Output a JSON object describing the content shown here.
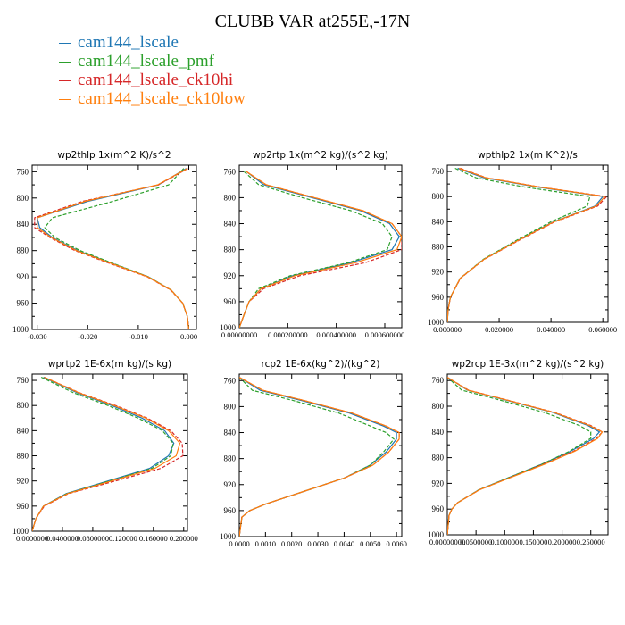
{
  "title": "CLUBB VAR at255E,-17N",
  "legend": [
    {
      "label": "cam144_lscale",
      "color": "#1f77b4"
    },
    {
      "label": "cam144_lscale_pmf",
      "color": "#2ca02c"
    },
    {
      "label": "cam144_lscale_ck10hi",
      "color": "#d62728"
    },
    {
      "label": "cam144_lscale_ck10low",
      "color": "#ff7f0e"
    }
  ],
  "chart_data": [
    {
      "type": "line",
      "title": "wp2thlp  1x(m^2 K)/s^2",
      "xlim": [
        -0.031,
        0.0015
      ],
      "ylim": [
        1000,
        750
      ],
      "xticks": [
        -0.03,
        -0.02,
        -0.01,
        0.0
      ],
      "xtick_labels": [
        "-0.030",
        "-0.020",
        "-0.010",
        "0.000"
      ],
      "yticks": [
        760,
        800,
        840,
        880,
        920,
        960,
        1000
      ],
      "ytick_labels": [
        "760",
        "800",
        "840",
        "880",
        "920",
        "960",
        "1000"
      ],
      "y": [
        755,
        780,
        805,
        830,
        845,
        860,
        880,
        900,
        920,
        940,
        960,
        980,
        1000
      ],
      "series": [
        {
          "name": "cam144_lscale",
          "color": "#1f77b4",
          "dash": "solid",
          "values": [
            -0.0005,
            -0.006,
            -0.02,
            -0.03,
            -0.0295,
            -0.027,
            -0.022,
            -0.015,
            -0.008,
            -0.0035,
            -0.0012,
            -0.0003,
            0.0
          ]
        },
        {
          "name": "cam144_lscale_pmf",
          "color": "#2ca02c",
          "dash": "dash",
          "values": [
            -0.001,
            -0.004,
            -0.015,
            -0.027,
            -0.0285,
            -0.0265,
            -0.0215,
            -0.0148,
            -0.008,
            -0.0035,
            -0.0012,
            -0.0003,
            0.0
          ]
        },
        {
          "name": "cam144_lscale_ck10hi",
          "color": "#d62728",
          "dash": "dash",
          "values": [
            -0.0002,
            -0.006,
            -0.021,
            -0.0305,
            -0.0305,
            -0.0275,
            -0.0225,
            -0.0155,
            -0.0082,
            -0.0036,
            -0.0012,
            -0.0003,
            0.0
          ]
        },
        {
          "name": "cam144_lscale_ck10low",
          "color": "#ff7f0e",
          "dash": "solid",
          "values": [
            -0.0003,
            -0.0062,
            -0.0205,
            -0.03,
            -0.03,
            -0.0272,
            -0.0222,
            -0.0152,
            -0.0081,
            -0.0035,
            -0.0012,
            -0.0003,
            0.0
          ]
        }
      ]
    },
    {
      "type": "line",
      "title": "wp2rtp  1x(m^2 kg)/(s^2 kg)",
      "xlim": [
        0.0,
        0.00067
      ],
      "ylim": [
        1000,
        750
      ],
      "xticks": [
        0.0,
        0.0002,
        0.0004,
        0.0006
      ],
      "xtick_labels": [
        "0.00000000",
        "0.000200000",
        "0.000400000",
        "0.000600000"
      ],
      "yticks": [
        760,
        800,
        840,
        880,
        920,
        960,
        1000
      ],
      "ytick_labels": [
        "760",
        "800",
        "840",
        "880",
        "920",
        "960",
        "1000"
      ],
      "y": [
        760,
        780,
        800,
        820,
        840,
        860,
        880,
        900,
        920,
        940,
        960,
        980,
        1000
      ],
      "series": [
        {
          "name": "cam144_lscale",
          "color": "#1f77b4",
          "dash": "solid",
          "values": [
            3e-05,
            0.0001,
            0.0003,
            0.0005,
            0.00062,
            0.00066,
            0.00063,
            0.00046,
            0.00022,
            9e-05,
            4e-05,
            2e-05,
            0.0
          ]
        },
        {
          "name": "cam144_lscale_pmf",
          "color": "#2ca02c",
          "dash": "dash",
          "values": [
            2e-05,
            8e-05,
            0.00026,
            0.00046,
            0.00059,
            0.00063,
            0.00061,
            0.00045,
            0.00021,
            8e-05,
            4e-05,
            2e-05,
            0.0
          ]
        },
        {
          "name": "cam144_lscale_ck10hi",
          "color": "#d62728",
          "dash": "dash",
          "values": [
            3e-05,
            0.00011,
            0.00031,
            0.00051,
            0.00063,
            0.00067,
            0.00067,
            0.00052,
            0.00025,
            0.0001,
            4e-05,
            2e-05,
            0.0
          ]
        },
        {
          "name": "cam144_lscale_ck10low",
          "color": "#ff7f0e",
          "dash": "solid",
          "values": [
            3e-05,
            0.00011,
            0.00031,
            0.00051,
            0.00063,
            0.00067,
            0.00065,
            0.00048,
            0.00023,
            9e-05,
            4e-05,
            2e-05,
            0.0
          ]
        }
      ]
    },
    {
      "type": "line",
      "title": "wpthlp2  1x(m K^2)/s",
      "xlim": [
        0.0,
        0.062
      ],
      "ylim": [
        1000,
        750
      ],
      "xticks": [
        0.0,
        0.02,
        0.04,
        0.06
      ],
      "xtick_labels": [
        "0.000000",
        "0.020000",
        "0.040000",
        "0.060000"
      ],
      "yticks": [
        760,
        800,
        840,
        880,
        920,
        960,
        1000
      ],
      "ytick_labels": [
        "760",
        "800",
        "840",
        "880",
        "920",
        "960",
        "1000"
      ],
      "y": [
        755,
        770,
        785,
        800,
        815,
        840,
        870,
        900,
        930,
        960,
        980,
        1000
      ],
      "series": [
        {
          "name": "cam144_lscale",
          "color": "#1f77b4",
          "dash": "solid",
          "values": [
            0.004,
            0.014,
            0.035,
            0.06,
            0.057,
            0.041,
            0.027,
            0.014,
            0.005,
            0.0012,
            0.0003,
            0.0
          ]
        },
        {
          "name": "cam144_lscale_pmf",
          "color": "#2ca02c",
          "dash": "dash",
          "values": [
            0.003,
            0.011,
            0.03,
            0.055,
            0.054,
            0.04,
            0.0265,
            0.0138,
            0.005,
            0.0012,
            0.0003,
            0.0
          ]
        },
        {
          "name": "cam144_lscale_ck10hi",
          "color": "#d62728",
          "dash": "dash",
          "values": [
            0.005,
            0.015,
            0.036,
            0.0615,
            0.058,
            0.0415,
            0.0275,
            0.0142,
            0.0051,
            0.0012,
            0.0003,
            0.0
          ]
        },
        {
          "name": "cam144_lscale_ck10low",
          "color": "#ff7f0e",
          "dash": "solid",
          "values": [
            0.0045,
            0.0148,
            0.0358,
            0.0608,
            0.0575,
            0.0412,
            0.0272,
            0.0141,
            0.005,
            0.0012,
            0.0003,
            0.0
          ]
        }
      ]
    },
    {
      "type": "line",
      "title": "wprtp2  1E-6x(m kg)/(s kg)",
      "xlim": [
        0.0,
        0.205
      ],
      "ylim": [
        1000,
        750
      ],
      "xticks": [
        0.0,
        0.04,
        0.08,
        0.12,
        0.16,
        0.2
      ],
      "xtick_labels": [
        "0.0000000",
        "0.0400000",
        "0.0800000",
        "0.120000",
        "0.160000",
        "0.200000"
      ],
      "yticks": [
        760,
        800,
        840,
        880,
        920,
        960,
        1000
      ],
      "ytick_labels": [
        "760",
        "800",
        "840",
        "880",
        "920",
        "960",
        "1000"
      ],
      "y": [
        755,
        780,
        800,
        820,
        840,
        860,
        880,
        900,
        920,
        940,
        960,
        980,
        1000
      ],
      "series": [
        {
          "name": "cam144_lscale",
          "color": "#1f77b4",
          "dash": "solid",
          "values": [
            0.015,
            0.06,
            0.105,
            0.145,
            0.175,
            0.187,
            0.18,
            0.155,
            0.1,
            0.045,
            0.015,
            0.005,
            0.0
          ]
        },
        {
          "name": "cam144_lscale_pmf",
          "color": "#2ca02c",
          "dash": "dash",
          "values": [
            0.012,
            0.055,
            0.1,
            0.14,
            0.172,
            0.186,
            0.183,
            0.158,
            0.102,
            0.046,
            0.015,
            0.005,
            0.0
          ]
        },
        {
          "name": "cam144_lscale_ck10hi",
          "color": "#d62728",
          "dash": "dash",
          "values": [
            0.016,
            0.063,
            0.11,
            0.152,
            0.183,
            0.198,
            0.199,
            0.17,
            0.11,
            0.048,
            0.016,
            0.005,
            0.0
          ]
        },
        {
          "name": "cam144_lscale_ck10low",
          "color": "#ff7f0e",
          "dash": "solid",
          "values": [
            0.016,
            0.062,
            0.108,
            0.15,
            0.18,
            0.195,
            0.19,
            0.162,
            0.105,
            0.047,
            0.015,
            0.005,
            0.0
          ]
        }
      ]
    },
    {
      "type": "line",
      "title": "rcp2  1E-6x(kg^2)/(kg^2)",
      "xlim": [
        0.0,
        0.0062
      ],
      "ylim": [
        1000,
        750
      ],
      "xticks": [
        0.0,
        0.001,
        0.002,
        0.003,
        0.004,
        0.005,
        0.006
      ],
      "xtick_labels": [
        "0.0000",
        "0.0010",
        "0.0020",
        "0.0030",
        "0.0040",
        "0.0050",
        "0.0060"
      ],
      "yticks": [
        760,
        800,
        840,
        880,
        920,
        960,
        1000
      ],
      "ytick_labels": [
        "760",
        "800",
        "840",
        "880",
        "920",
        "960",
        "1000"
      ],
      "y": [
        755,
        775,
        790,
        810,
        830,
        840,
        850,
        870,
        890,
        910,
        930,
        950,
        960,
        970,
        1000
      ],
      "series": [
        {
          "name": "cam144_lscale",
          "color": "#1f77b4",
          "dash": "solid",
          "values": [
            0.0,
            0.0008,
            0.0023,
            0.0042,
            0.0055,
            0.006,
            0.006,
            0.0056,
            0.005,
            0.004,
            0.0025,
            0.001,
            0.0004,
            0.0001,
            0.0
          ]
        },
        {
          "name": "cam144_lscale_pmf",
          "color": "#2ca02c",
          "dash": "dash",
          "values": [
            0.0,
            0.0005,
            0.002,
            0.0038,
            0.005,
            0.0056,
            0.0059,
            0.0055,
            0.005,
            0.004,
            0.0025,
            0.001,
            0.0004,
            0.0001,
            0.0
          ]
        },
        {
          "name": "cam144_lscale_ck10hi",
          "color": "#d62728",
          "dash": "dash",
          "values": [
            0.0,
            0.0009,
            0.0024,
            0.0043,
            0.0056,
            0.0061,
            0.0061,
            0.0057,
            0.0051,
            0.004,
            0.0025,
            0.001,
            0.0004,
            0.0001,
            0.0
          ]
        },
        {
          "name": "cam144_lscale_ck10low",
          "color": "#ff7f0e",
          "dash": "solid",
          "values": [
            0.0,
            0.0009,
            0.0024,
            0.0043,
            0.0056,
            0.0061,
            0.0061,
            0.0057,
            0.0051,
            0.004,
            0.0025,
            0.001,
            0.0004,
            0.0001,
            0.0
          ]
        }
      ]
    },
    {
      "type": "line",
      "title": "wp2rcp  1E-3x(m^2 kg)/(s^2 kg)",
      "xlim": [
        0.0,
        0.28
      ],
      "ylim": [
        1000,
        750
      ],
      "xticks": [
        0.0,
        0.05,
        0.1,
        0.15,
        0.2,
        0.25
      ],
      "xtick_labels": [
        "0.00000000",
        "0.0500000",
        "0.100000",
        "0.150000",
        "0.200000",
        "0.250000"
      ],
      "yticks": [
        760,
        800,
        840,
        880,
        920,
        960,
        1000
      ],
      "ytick_labels": [
        "760",
        "800",
        "840",
        "880",
        "920",
        "960",
        "1000"
      ],
      "y": [
        755,
        775,
        790,
        810,
        830,
        840,
        850,
        870,
        890,
        910,
        930,
        950,
        960,
        970,
        1000
      ],
      "series": [
        {
          "name": "cam144_lscale",
          "color": "#1f77b4",
          "dash": "solid",
          "values": [
            0.0,
            0.035,
            0.1,
            0.185,
            0.245,
            0.265,
            0.255,
            0.215,
            0.165,
            0.11,
            0.055,
            0.018,
            0.008,
            0.003,
            0.0
          ]
        },
        {
          "name": "cam144_lscale_pmf",
          "color": "#2ca02c",
          "dash": "dash",
          "values": [
            0.0,
            0.025,
            0.09,
            0.17,
            0.23,
            0.25,
            0.25,
            0.213,
            0.165,
            0.11,
            0.055,
            0.018,
            0.008,
            0.003,
            0.0
          ]
        },
        {
          "name": "cam144_lscale_ck10hi",
          "color": "#d62728",
          "dash": "dash",
          "values": [
            0.0,
            0.037,
            0.103,
            0.188,
            0.25,
            0.27,
            0.26,
            0.22,
            0.168,
            0.112,
            0.056,
            0.018,
            0.008,
            0.003,
            0.0
          ]
        },
        {
          "name": "cam144_lscale_ck10low",
          "color": "#ff7f0e",
          "dash": "solid",
          "values": [
            0.0,
            0.036,
            0.102,
            0.187,
            0.248,
            0.27,
            0.262,
            0.222,
            0.17,
            0.113,
            0.056,
            0.018,
            0.008,
            0.003,
            0.0
          ]
        }
      ]
    }
  ]
}
